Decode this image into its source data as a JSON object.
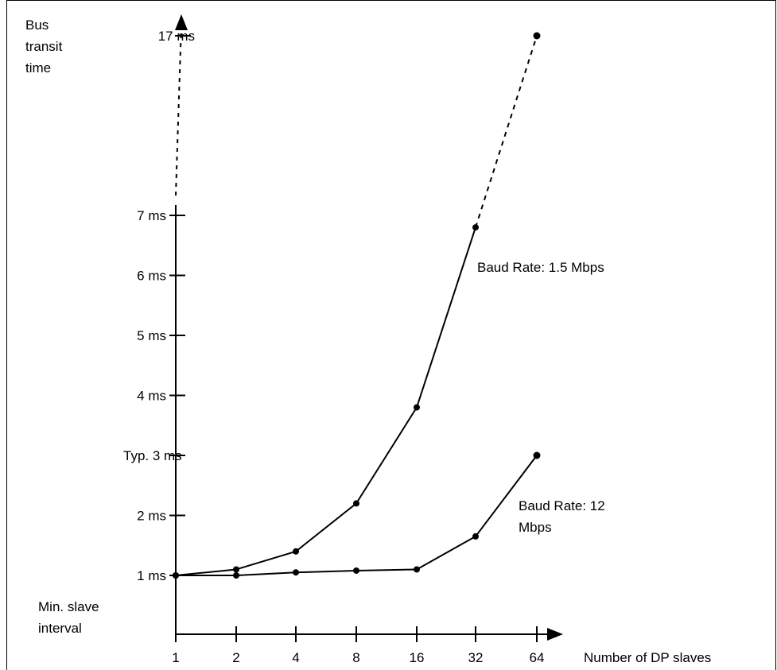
{
  "chart_data": {
    "type": "line",
    "ylabel": [
      "Bus",
      "transit",
      "time"
    ],
    "xlabel": "Number of DP slaves",
    "categories": [
      "1",
      "2",
      "4",
      "8",
      "16",
      "32",
      "64"
    ],
    "y_ticks": [
      {
        "label": "1 ms",
        "value": 1
      },
      {
        "label": "2 ms",
        "value": 2
      },
      {
        "label": "Typ. 3 ms",
        "value": 3
      },
      {
        "label": "4 ms",
        "value": 4
      },
      {
        "label": "5 ms",
        "value": 5
      },
      {
        "label": "6 ms",
        "value": 6
      },
      {
        "label": "7 ms",
        "value": 7
      },
      {
        "label": "17 ms",
        "value": 17
      }
    ],
    "y_axis_break": [
      7,
      17
    ],
    "annotation_min": [
      "Min. slave",
      "interval"
    ],
    "series": [
      {
        "name": "Baud Rate: 1.5 Mbps",
        "name_lines": [
          "Baud Rate: 1.5 Mbps"
        ],
        "values": [
          1.0,
          1.1,
          1.4,
          2.2,
          3.8,
          6.8,
          17.0
        ],
        "dashed_from_index": 5
      },
      {
        "name": "Baud Rate: 12 Mbps",
        "name_lines": [
          "Baud Rate: 12",
          "Mbps"
        ],
        "values": [
          1.0,
          1.0,
          1.05,
          1.08,
          1.1,
          1.65,
          3.0
        ],
        "dashed_from_index": null
      }
    ]
  }
}
